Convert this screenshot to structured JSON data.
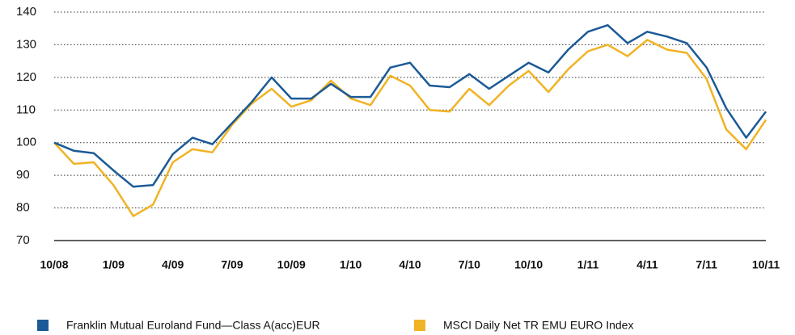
{
  "chart_data": {
    "type": "line",
    "categories": [
      "10/08",
      null,
      null,
      "1/09",
      null,
      null,
      "4/09",
      null,
      null,
      "7/09",
      null,
      null,
      "10/09",
      null,
      null,
      "1/10",
      null,
      null,
      "4/10",
      null,
      null,
      "7/10",
      null,
      null,
      "10/10",
      null,
      null,
      "1/11",
      null,
      null,
      "4/11",
      null,
      null,
      "7/11",
      null,
      null,
      "10/11"
    ],
    "series": [
      {
        "name": "Franklin Mutual Euroland Fund—Class A(acc)EUR",
        "color": "#1b5a96",
        "values": [
          100,
          97.5,
          96.8,
          91.5,
          86.5,
          87,
          96.5,
          101.5,
          99.5,
          106,
          112.5,
          120,
          113.5,
          113.5,
          118,
          114,
          114,
          123,
          124.5,
          117.5,
          117,
          121,
          116.5,
          120.5,
          124.5,
          121.5,
          128.5,
          134,
          136,
          130.5,
          134,
          132.5,
          130.5,
          123,
          110.5,
          101.5,
          109.5
        ]
      },
      {
        "name": "MSCI Daily Net TR EMU EURO Index",
        "color": "#f0b323",
        "values": [
          100,
          93.5,
          94,
          87,
          77.5,
          81,
          94,
          98,
          97,
          105.5,
          112,
          116.5,
          111,
          113,
          119,
          113.5,
          111.5,
          120.5,
          117.5,
          110,
          109.5,
          116.5,
          111.5,
          117.5,
          122,
          115.5,
          122.5,
          128,
          130,
          126.5,
          131.5,
          128.5,
          127.5,
          119.5,
          104,
          98,
          107
        ]
      }
    ],
    "ylim": [
      70,
      140
    ],
    "yticks": [
      70,
      80,
      90,
      100,
      110,
      120,
      130,
      140
    ],
    "grid": true
  }
}
